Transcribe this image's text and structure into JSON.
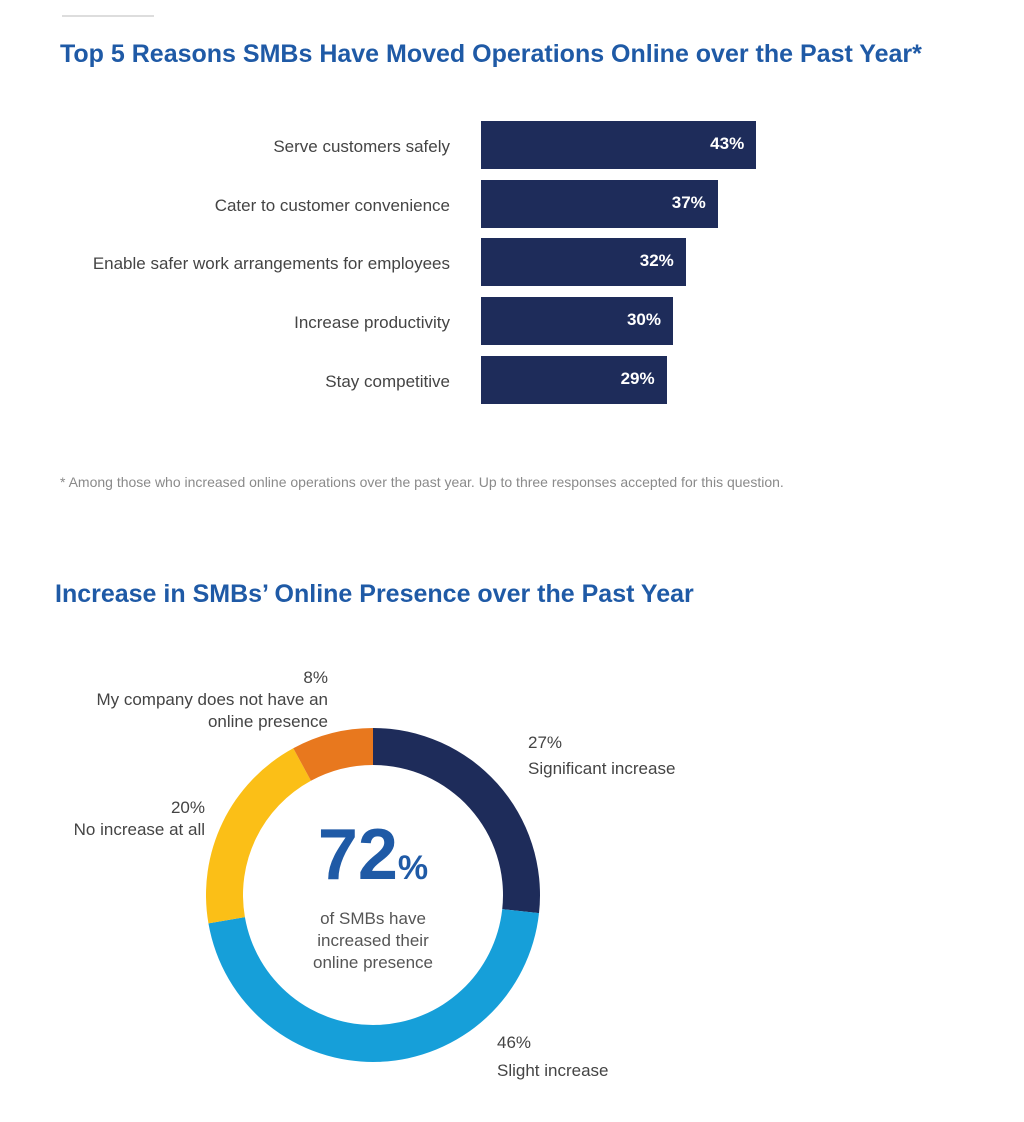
{
  "chart_data": [
    {
      "type": "bar",
      "orientation": "horizontal",
      "title": "Top 5 Reasons SMBs Have Moved Operations Online over the Past Year*",
      "categories": [
        "Serve customers safely",
        "Cater to customer convenience",
        "Enable safer work arrangements for employees",
        "Increase productivity",
        "Stay competitive"
      ],
      "values": [
        43,
        37,
        32,
        30,
        29
      ],
      "value_labels": [
        "43%",
        "37%",
        "32%",
        "30%",
        "29%"
      ],
      "unit": "%",
      "color": "#1e2c5a",
      "footnote": "* Among those who increased online operations over the past year. Up to three responses accepted for this question."
    },
    {
      "type": "pie",
      "subtype": "donut",
      "title": "Increase in SMBs’ Online Presence over the Past Year",
      "slices": [
        {
          "label": "Significant increase",
          "value": 27,
          "value_label": "27%",
          "color": "#1e2c5a"
        },
        {
          "label": "Slight increase",
          "value": 46,
          "value_label": "46%",
          "color": "#169fd9"
        },
        {
          "label": "No increase at all",
          "value": 20,
          "value_label": "20%",
          "color": "#fbbf17"
        },
        {
          "label": "My company does not have an online presence",
          "label_lines": [
            "My company does not have an",
            "online presence"
          ],
          "value": 8,
          "value_label": "8%",
          "color": "#e8781e"
        }
      ],
      "center": {
        "value": "72",
        "unit": "%",
        "lines": [
          "of SMBs have",
          "increased their",
          "online presence"
        ]
      }
    }
  ]
}
